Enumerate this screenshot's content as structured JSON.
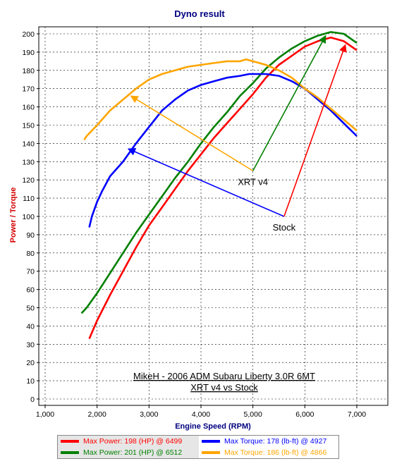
{
  "chart_data": {
    "type": "line",
    "title": "Dyno result",
    "xlabel": "Engine Speed (RPM)",
    "ylabel": "Power / Torque",
    "xlim": [
      1000,
      7500
    ],
    "ylim": [
      0,
      205
    ],
    "x_ticks": [
      1000,
      2000,
      3000,
      4000,
      5000,
      6000,
      7000
    ],
    "x_tick_labels": [
      "1,000",
      "2,000",
      "3,000",
      "4,000",
      "5,000",
      "6,000",
      "7,000"
    ],
    "y_ticks": [
      0,
      10,
      20,
      30,
      40,
      50,
      60,
      70,
      80,
      90,
      100,
      110,
      120,
      130,
      140,
      150,
      160,
      170,
      180,
      190,
      200
    ],
    "grid": true,
    "legend_position": "bottom",
    "series": [
      {
        "name": "Max Power: 198 (HP) @ 6499",
        "color": "#ff0000",
        "x": [
          1850,
          2000,
          2250,
          2500,
          2750,
          3000,
          3250,
          3500,
          3750,
          4000,
          4250,
          4500,
          4750,
          5000,
          5250,
          5500,
          5750,
          6000,
          6250,
          6500,
          6750,
          7000
        ],
        "y": [
          33,
          43,
          57,
          70,
          83,
          95,
          105,
          115,
          125,
          134,
          143,
          151,
          159,
          167,
          176,
          183,
          188,
          193,
          196,
          198,
          196,
          191
        ]
      },
      {
        "name": "Max Power: 201 (HP) @ 6512",
        "color": "#008000",
        "x": [
          1700,
          1800,
          2000,
          2250,
          2500,
          2750,
          3000,
          3250,
          3500,
          3750,
          4000,
          4250,
          4500,
          4750,
          5000,
          5250,
          5500,
          5750,
          6000,
          6250,
          6500,
          6750,
          7000
        ],
        "y": [
          47,
          50,
          58,
          69,
          80,
          91,
          101,
          111,
          121,
          130,
          140,
          149,
          157,
          166,
          173,
          181,
          187,
          192,
          196,
          199,
          201,
          200,
          195
        ]
      },
      {
        "name": "Max Torque: 178 (lb-ft) @ 4927",
        "color": "#0000ff",
        "x": [
          1850,
          1900,
          2000,
          2100,
          2250,
          2500,
          2750,
          3000,
          3250,
          3500,
          3750,
          4000,
          4250,
          4500,
          4750,
          4927,
          5250,
          5500,
          5750,
          6000,
          6250,
          6500,
          6750,
          7000
        ],
        "y": [
          94,
          100,
          108,
          114,
          122,
          130,
          140,
          149,
          158,
          164,
          169,
          172,
          174,
          176,
          177,
          178,
          178,
          177,
          174,
          170,
          164,
          158,
          151,
          144
        ]
      },
      {
        "name": "Max Torque: 186 (lb-ft) @ 4866",
        "color": "#ffa500",
        "x": [
          1750,
          1800,
          2000,
          2250,
          2500,
          2750,
          3000,
          3250,
          3500,
          3750,
          4000,
          4250,
          4500,
          4750,
          4866,
          5000,
          5250,
          5500,
          5750,
          6000,
          6250,
          6500,
          6750,
          7000
        ],
        "y": [
          142,
          144,
          150,
          158,
          164,
          170,
          175,
          178,
          180,
          182,
          183,
          184,
          185,
          185,
          186,
          185,
          183,
          180,
          176,
          170,
          165,
          159,
          153,
          147
        ]
      }
    ],
    "annotations": [
      {
        "text": "XRT v4",
        "x": 5000,
        "y": 125,
        "arrows_to": [
          [
            2650,
            166
          ],
          [
            6400,
            199
          ]
        ]
      },
      {
        "text": "Stock",
        "x": 5600,
        "y": 100,
        "arrows_to": [
          [
            2600,
            137
          ],
          [
            6780,
            194
          ]
        ]
      }
    ],
    "caption": {
      "line1": "MikeH - 2006 ADM Subaru Liberty 3.0R 6MT",
      "line2": "XRT v4 vs Stock"
    }
  },
  "legend": {
    "items": [
      {
        "label": "Max Power: 198 (HP) @ 6499",
        "color": "#ff0000",
        "background": "#e6e6e6"
      },
      {
        "label": "Max Torque: 178 (lb-ft) @ 4927",
        "color": "#0000ff",
        "background": "#ffffff"
      },
      {
        "label": "Max Power: 201 (HP) @ 6512",
        "color": "#008000",
        "background": "#e6e6e6"
      },
      {
        "label": "Max Torque: 186 (lb-ft) @ 4866",
        "color": "#ffa500",
        "background": "#ffffff"
      }
    ]
  }
}
